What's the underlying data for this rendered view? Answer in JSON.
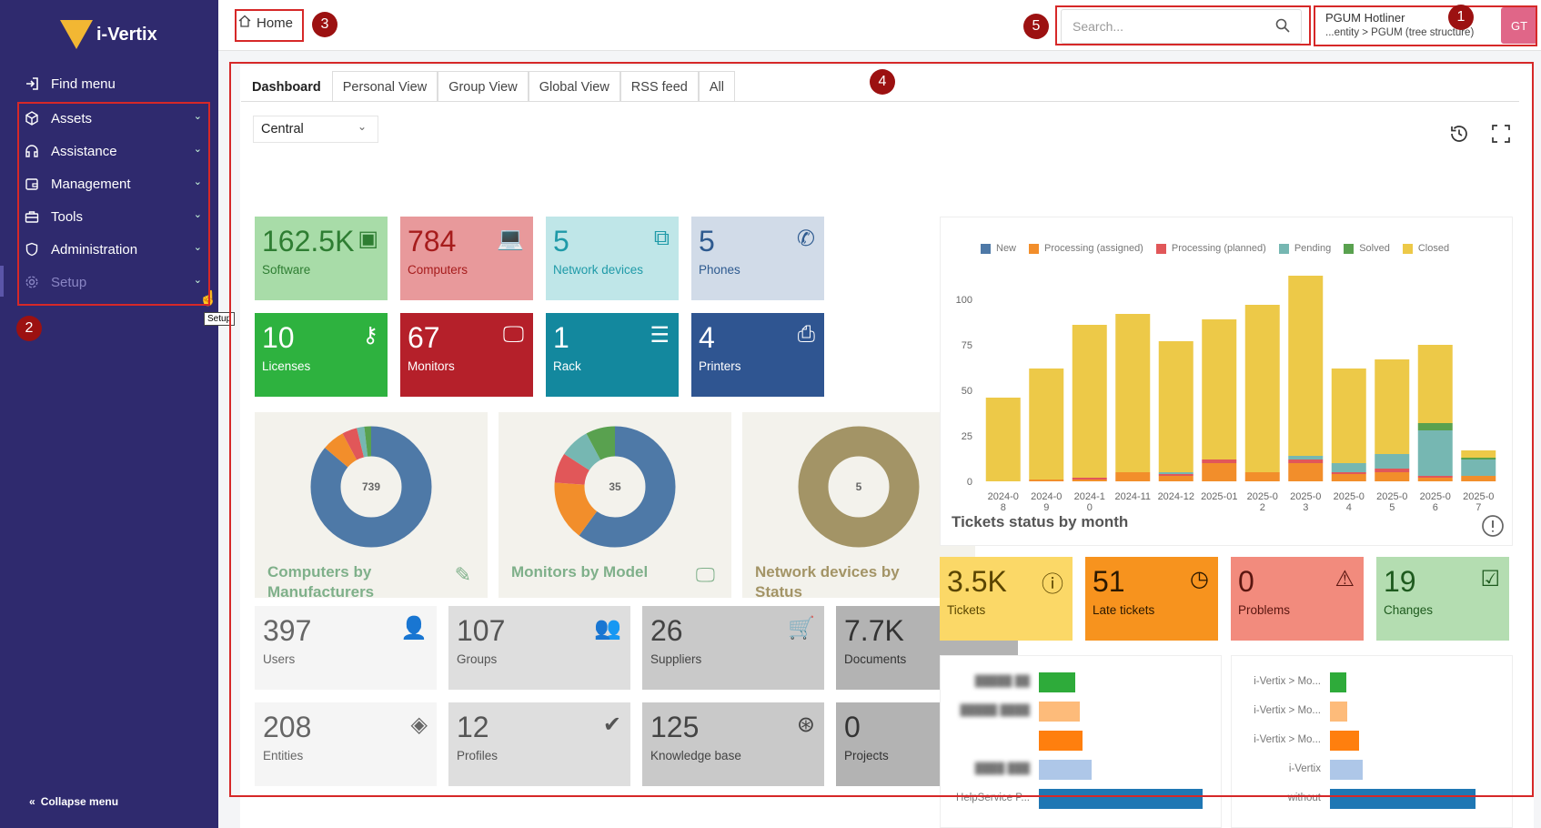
{
  "sidebar": {
    "logo_text": "i-Vertix",
    "find_menu": "Find menu",
    "items": [
      {
        "label": "Assets",
        "icon": "cube-icon"
      },
      {
        "label": "Assistance",
        "icon": "headset-icon"
      },
      {
        "label": "Management",
        "icon": "wallet-icon"
      },
      {
        "label": "Tools",
        "icon": "toolbox-icon"
      },
      {
        "label": "Administration",
        "icon": "shield-icon"
      },
      {
        "label": "Setup",
        "icon": "gear-icon"
      }
    ],
    "tooltip": "Setup",
    "collapse": "Collapse menu"
  },
  "annotations": [
    "1",
    "2",
    "3",
    "4",
    "5"
  ],
  "header": {
    "breadcrumb": "Home",
    "search_placeholder": "Search...",
    "user_name": "PGUM Hotliner",
    "user_entity": "...entity > PGUM (tree structure)",
    "avatar_initials": "GT"
  },
  "tabs": [
    "Dashboard",
    "Personal View",
    "Group View",
    "Global View",
    "RSS feed",
    "All"
  ],
  "dashboard_select": "Central",
  "asset_cards": [
    {
      "value": "162.5K",
      "label": "Software",
      "icon": "apps-icon",
      "bg": "#a8dca8",
      "fg": "#2e7d32"
    },
    {
      "value": "784",
      "label": "Computers",
      "icon": "laptop-icon",
      "bg": "#e8999b",
      "fg": "#a61c1c"
    },
    {
      "value": "5",
      "label": "Network devices",
      "icon": "network-icon",
      "bg": "#bfe6e8",
      "fg": "#1f9aa8"
    },
    {
      "value": "5",
      "label": "Phones",
      "icon": "phone-icon",
      "bg": "#d1dbe8",
      "fg": "#2e5a8f"
    },
    {
      "value": "10",
      "label": "Licenses",
      "icon": "key-icon",
      "bg": "#2eb23f",
      "fg": "#ffffff"
    },
    {
      "value": "67",
      "label": "Monitors",
      "icon": "monitor-icon",
      "bg": "#b5202a",
      "fg": "#ffffff"
    },
    {
      "value": "1",
      "label": "Rack",
      "icon": "server-icon",
      "bg": "#13889e",
      "fg": "#ffffff"
    },
    {
      "value": "4",
      "label": "Printers",
      "icon": "printer-icon",
      "bg": "#2f5591",
      "fg": "#ffffff"
    }
  ],
  "pie_cards": [
    {
      "title": "Computers by Manufacturers",
      "total": "739",
      "title_color": "#7fb08a",
      "icon": "edit-icon"
    },
    {
      "title": "Monitors by Model",
      "total": "35",
      "title_color": "#7fb08a",
      "icon": "monitor-icon"
    },
    {
      "title": "Network devices by Status",
      "total": "5",
      "title_color": "#a39466",
      "icon": "tree-icon"
    }
  ],
  "admin_cards": [
    {
      "value": "397",
      "label": "Users",
      "icon": "user-icon",
      "bg": "#f5f5f5",
      "fg": "#666"
    },
    {
      "value": "107",
      "label": "Groups",
      "icon": "users-icon",
      "bg": "#dedede",
      "fg": "#555"
    },
    {
      "value": "26",
      "label": "Suppliers",
      "icon": "cart-icon",
      "bg": "#c9c9c9",
      "fg": "#444"
    },
    {
      "value": "7.7K",
      "label": "Documents",
      "icon": "files-icon",
      "bg": "#b3b3b3",
      "fg": "#333"
    },
    {
      "value": "208",
      "label": "Entities",
      "icon": "layers-icon",
      "bg": "#f5f5f5",
      "fg": "#666"
    },
    {
      "value": "12",
      "label": "Profiles",
      "icon": "user-check-icon",
      "bg": "#dedede",
      "fg": "#555"
    },
    {
      "value": "125",
      "label": "Knowledge base",
      "icon": "lifebuoy-icon",
      "bg": "#c9c9c9",
      "fg": "#444"
    },
    {
      "value": "0",
      "label": "Projects",
      "icon": "kanban-icon",
      "bg": "#b3b3b3",
      "fg": "#333"
    }
  ],
  "ticket_cards": [
    {
      "value": "3.5K",
      "label": "Tickets",
      "icon": "alert-circle-icon",
      "bg": "#fbd867",
      "fg": "#5a4500"
    },
    {
      "value": "51",
      "label": "Late tickets",
      "icon": "clock-icon",
      "bg": "#f7931e",
      "fg": "#2b1800"
    },
    {
      "value": "0",
      "label": "Problems",
      "icon": "warning-icon",
      "bg": "#f28b7d",
      "fg": "#5a1610"
    },
    {
      "value": "19",
      "label": "Changes",
      "icon": "clipboard-check-icon",
      "bg": "#b4ddb1",
      "fg": "#1e5a1e"
    }
  ],
  "chart_data": {
    "type": "bar",
    "title": "Tickets status by month",
    "stacked": true,
    "categories": [
      "2024-08",
      "2024-09",
      "2024-10",
      "2024-11",
      "2024-12",
      "2025-01",
      "2025-02",
      "2025-03",
      "2025-04",
      "2025-05",
      "2025-06",
      "2025-07"
    ],
    "tick_labels": [
      "2024-0\n8",
      "2024-0\n9",
      "2024-1\n0",
      "2024-11",
      "2024-12",
      "2025-01",
      "2025-0\n2",
      "2025-0\n3",
      "2025-0\n4",
      "2025-0\n5",
      "2025-0\n6",
      "2025-0\n7"
    ],
    "series": [
      {
        "name": "New",
        "color": "#4e79a7",
        "values": [
          0,
          0,
          0,
          0,
          0,
          0,
          0,
          0,
          0,
          0,
          0,
          0
        ]
      },
      {
        "name": "Processing (assigned)",
        "color": "#f28e2b",
        "values": [
          0,
          1,
          1,
          5,
          3,
          10,
          5,
          10,
          4,
          5,
          2,
          3
        ]
      },
      {
        "name": "Processing (planned)",
        "color": "#e15759",
        "values": [
          0,
          0,
          1,
          0,
          1,
          2,
          0,
          2,
          1,
          2,
          1,
          0
        ]
      },
      {
        "name": "Pending",
        "color": "#76b7b2",
        "values": [
          0,
          0,
          0,
          0,
          1,
          0,
          0,
          2,
          5,
          8,
          25,
          9
        ]
      },
      {
        "name": "Solved",
        "color": "#59a14f",
        "values": [
          0,
          0,
          0,
          0,
          0,
          0,
          0,
          0,
          0,
          0,
          4,
          1
        ]
      },
      {
        "name": "Closed",
        "color": "#edc948",
        "values": [
          46,
          61,
          84,
          87,
          72,
          77,
          92,
          99,
          52,
          52,
          43,
          4
        ]
      }
    ],
    "ylim": [
      0,
      115
    ],
    "yticks": [
      0,
      25,
      50,
      75,
      100
    ]
  },
  "hbar_left": {
    "rows": [
      {
        "label": "█████ ██",
        "value": 40,
        "color": "#2eab3a",
        "blurred": true
      },
      {
        "label": "█████ ████",
        "value": 45,
        "color": "#fdbb7a",
        "blurred": true
      },
      {
        "label": "",
        "value": 48,
        "color": "#ff7f0e",
        "blurred": false
      },
      {
        "label": "████ ███",
        "value": 58,
        "color": "#aec7e8",
        "blurred": true
      },
      {
        "label": "HelpService P...",
        "value": 180,
        "color": "#1f77b4",
        "blurred": false
      }
    ]
  },
  "hbar_right": {
    "rows": [
      {
        "label": "i-Vertix > Mo...",
        "value": 18,
        "color": "#2eab3a"
      },
      {
        "label": "i-Vertix > Mo...",
        "value": 19,
        "color": "#fdbb7a"
      },
      {
        "label": "i-Vertix > Mo...",
        "value": 32,
        "color": "#ff7f0e"
      },
      {
        "label": "i-Vertix",
        "value": 36,
        "color": "#aec7e8"
      },
      {
        "label": "without",
        "value": 160,
        "color": "#1f77b4"
      }
    ]
  }
}
